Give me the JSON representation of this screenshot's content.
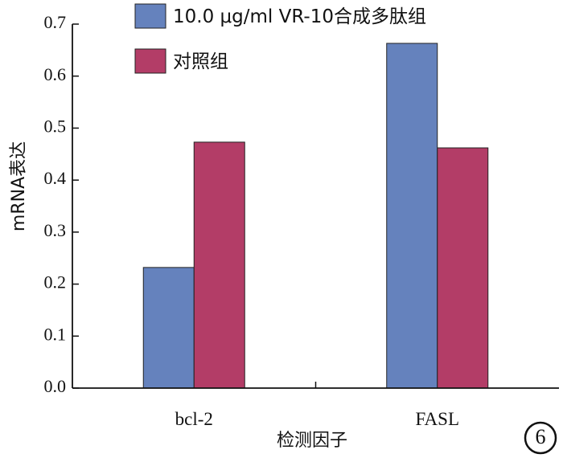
{
  "chart_data": {
    "type": "bar",
    "categories": [
      "bcl-2",
      "FASL"
    ],
    "series": [
      {
        "name": "10.0 μg/ml VR-10合成多肽组",
        "values": [
          0.232,
          0.663
        ],
        "color": "#6582bd"
      },
      {
        "name": "对照组",
        "values": [
          0.473,
          0.462
        ],
        "color": "#b33d67"
      }
    ],
    "xlabel": "检测因子",
    "ylabel": "mRNA表达",
    "ylim": [
      0,
      0.7
    ],
    "yticks": [
      "0.0",
      "0.1",
      "0.2",
      "0.3",
      "0.4",
      "0.5",
      "0.6",
      "0.7"
    ],
    "legend_position": "top",
    "grid": false
  },
  "figure_badge": "6"
}
